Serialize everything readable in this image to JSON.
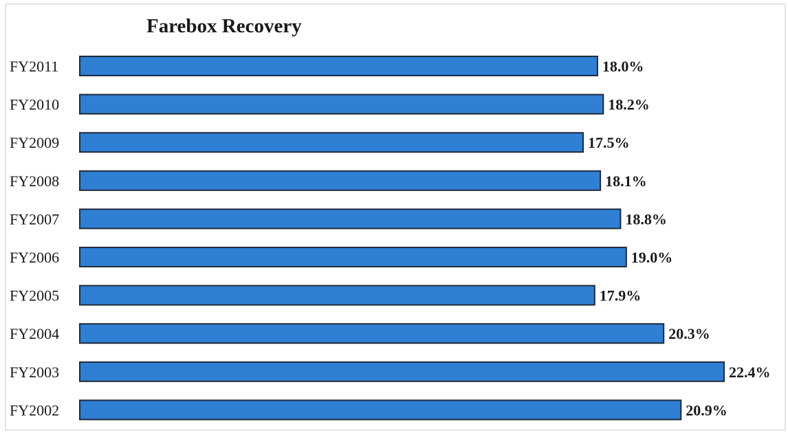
{
  "chart_data": {
    "type": "bar",
    "orientation": "horizontal",
    "title": "Farebox Recovery",
    "xlabel": "",
    "ylabel": "",
    "categories": [
      "FY2011",
      "FY2010",
      "FY2009",
      "FY2008",
      "FY2007",
      "FY2006",
      "FY2005",
      "FY2004",
      "FY2003",
      "FY2002"
    ],
    "values": [
      18.0,
      18.2,
      17.5,
      18.1,
      18.8,
      19.0,
      17.9,
      20.3,
      22.4,
      20.9
    ],
    "data_labels": [
      "18.0%",
      "18.2%",
      "17.5%",
      "18.1%",
      "18.8%",
      "19.0%",
      "17.9%",
      "20.3%",
      "22.4%",
      "20.9%"
    ],
    "xlim": [
      0,
      24
    ],
    "grid": false,
    "legend": "none",
    "bar_color": "#2f7fd4",
    "bar_edge_color": "#1f2a3a"
  }
}
